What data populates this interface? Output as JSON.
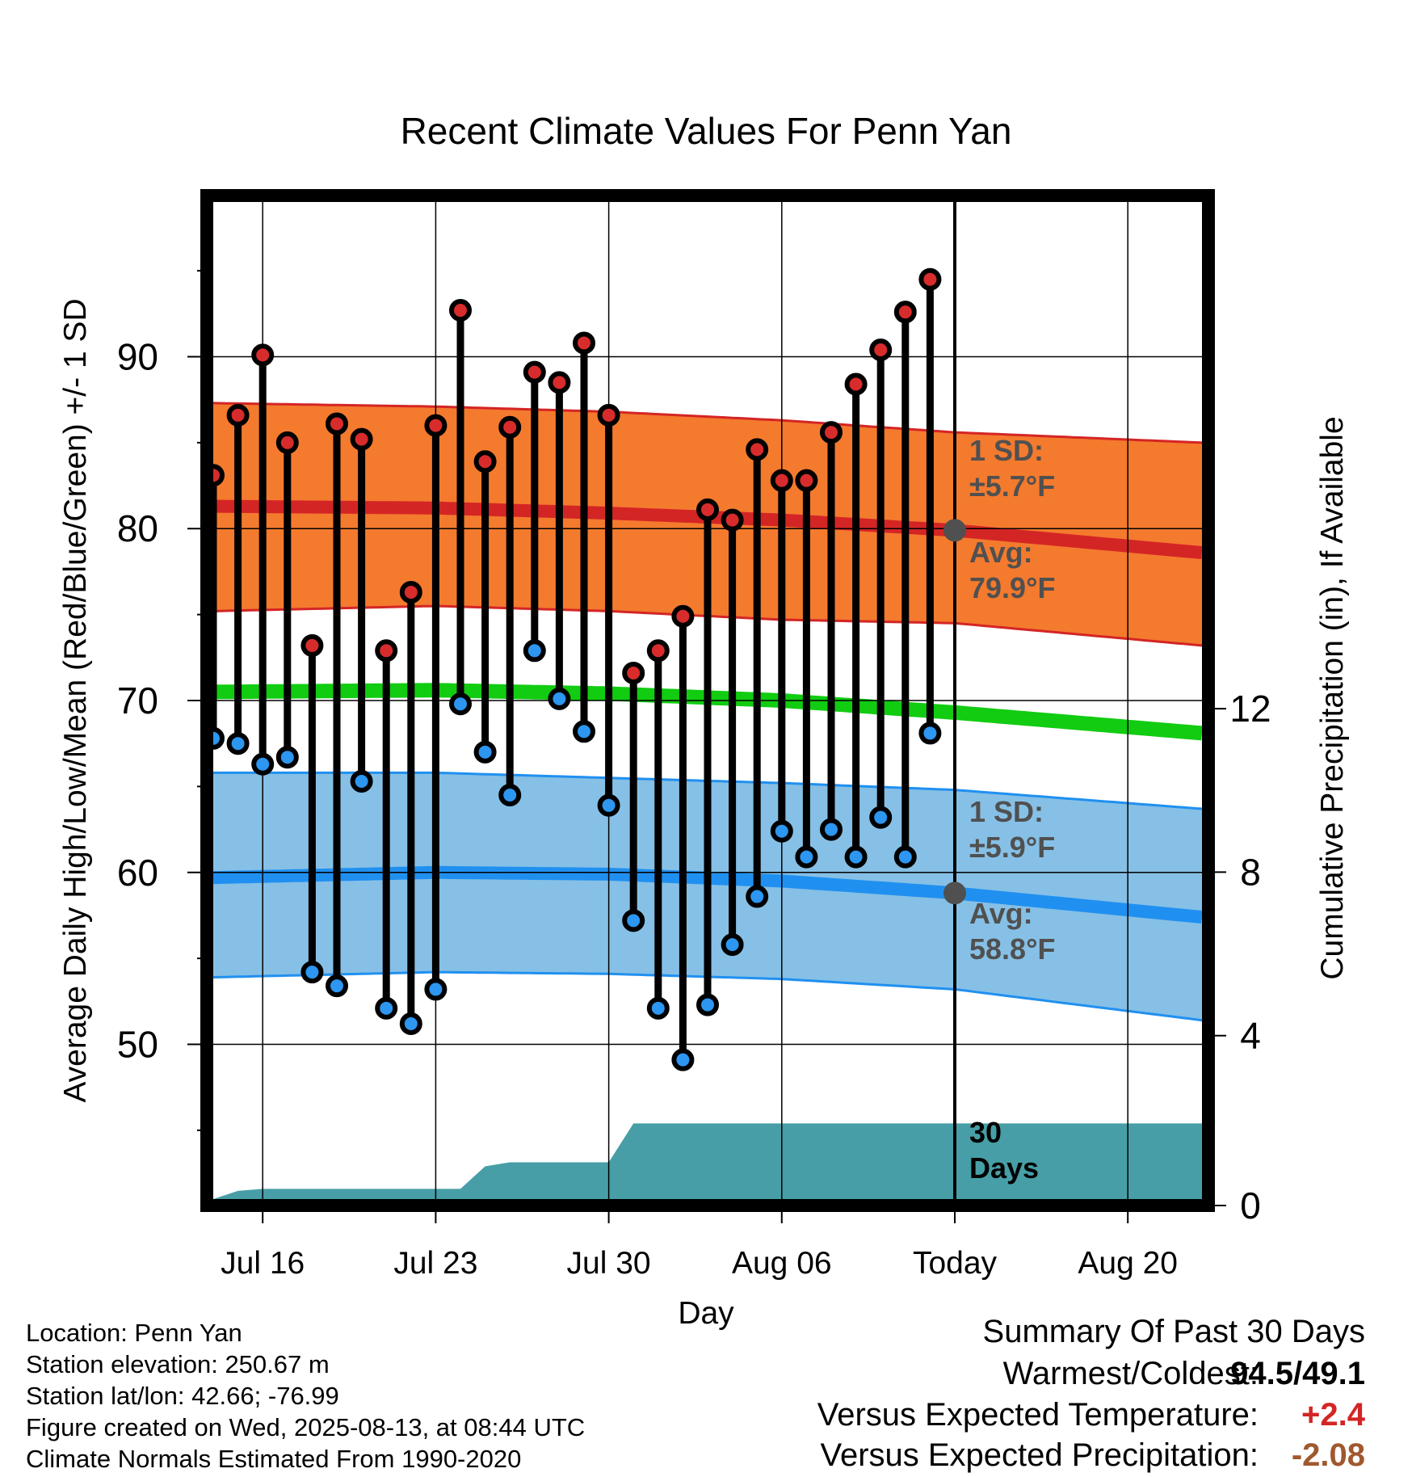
{
  "chart_data": {
    "type": "line",
    "title": "Recent Climate Values For Penn Yan",
    "xlabel": "Day",
    "ylabel": "Average Daily High/Low/Mean (Red/Blue/Green) +/- 1 SD",
    "y2label": "Cumulative Precipitation (in), If Available",
    "x_tick_labels": [
      "Jul 16",
      "Jul 23",
      "Jul 30",
      "Aug 06",
      "Today",
      "Aug 20"
    ],
    "x_tick_dates": [
      "2025-07-16",
      "2025-07-23",
      "2025-07-30",
      "2025-08-06",
      "2025-08-13",
      "2025-08-20"
    ],
    "x_range": [
      "2025-07-14",
      "2025-08-23"
    ],
    "ylim": [
      41,
      99
    ],
    "y_ticks": [
      50,
      60,
      70,
      80,
      90
    ],
    "y2lim": [
      0,
      24.4
    ],
    "y2_ticks": [
      0,
      4,
      8,
      12
    ],
    "grid": true,
    "today": "2025-08-13",
    "high_avg_band": {
      "dates": [
        "2025-07-14",
        "2025-07-23",
        "2025-07-30",
        "2025-08-06",
        "2025-08-13",
        "2025-08-23"
      ],
      "mean": [
        81.3,
        81.2,
        80.9,
        80.5,
        79.9,
        78.6
      ],
      "upper": [
        87.3,
        87.1,
        86.8,
        86.3,
        85.6,
        85.0
      ],
      "lower": [
        75.2,
        75.5,
        75.2,
        74.7,
        74.5,
        73.2
      ]
    },
    "low_avg_band": {
      "dates": [
        "2025-07-14",
        "2025-07-23",
        "2025-07-30",
        "2025-08-06",
        "2025-08-13",
        "2025-08-23"
      ],
      "mean": [
        59.7,
        60.0,
        59.9,
        59.5,
        58.8,
        57.4
      ],
      "upper": [
        65.8,
        65.8,
        65.5,
        65.2,
        64.8,
        63.7
      ],
      "lower": [
        53.9,
        54.2,
        54.1,
        53.8,
        53.2,
        51.4
      ]
    },
    "mean_avg": {
      "dates": [
        "2025-07-14",
        "2025-07-23",
        "2025-07-30",
        "2025-08-06",
        "2025-08-13",
        "2025-08-23"
      ],
      "values": [
        70.5,
        70.6,
        70.4,
        70.0,
        69.3,
        68.1
      ]
    },
    "daily_dates": [
      "2025-07-14",
      "2025-07-15",
      "2025-07-16",
      "2025-07-17",
      "2025-07-18",
      "2025-07-19",
      "2025-07-20",
      "2025-07-21",
      "2025-07-22",
      "2025-07-23",
      "2025-07-24",
      "2025-07-25",
      "2025-07-26",
      "2025-07-27",
      "2025-07-28",
      "2025-07-29",
      "2025-07-30",
      "2025-07-31",
      "2025-08-01",
      "2025-08-02",
      "2025-08-03",
      "2025-08-04",
      "2025-08-05",
      "2025-08-06",
      "2025-08-07",
      "2025-08-08",
      "2025-08-09",
      "2025-08-10",
      "2025-08-11",
      "2025-08-12"
    ],
    "daily_high": [
      83.1,
      86.6,
      90.1,
      85.0,
      73.2,
      86.1,
      85.2,
      72.9,
      76.3,
      86.0,
      92.7,
      83.9,
      85.9,
      89.1,
      88.5,
      90.8,
      86.6,
      71.6,
      72.9,
      74.9,
      81.1,
      80.5,
      84.6,
      82.8,
      82.8,
      85.6,
      88.4,
      90.4,
      92.6,
      94.5
    ],
    "daily_low": [
      67.8,
      67.5,
      66.3,
      66.7,
      54.2,
      53.4,
      65.3,
      52.1,
      51.2,
      53.2,
      69.8,
      67.0,
      64.5,
      72.9,
      70.1,
      68.2,
      63.9,
      57.2,
      52.1,
      49.1,
      52.3,
      55.8,
      58.6,
      62.4,
      60.9,
      62.5,
      60.9,
      63.2,
      60.9,
      68.1
    ],
    "precip_cumulative": {
      "dates": [
        "2025-07-14",
        "2025-07-15",
        "2025-07-16",
        "2025-07-24",
        "2025-07-25",
        "2025-07-26",
        "2025-07-30",
        "2025-07-31",
        "2025-08-23"
      ],
      "values": [
        0.0,
        0.2,
        0.25,
        0.25,
        0.8,
        0.9,
        0.9,
        1.85,
        1.85
      ]
    },
    "annotations": {
      "high_sd": "±5.7°F",
      "high_avg": "79.9°F",
      "low_sd": "±5.9°F",
      "low_avg": "58.8°F",
      "sd_prefix": "1 SD:",
      "avg_prefix": "Avg:",
      "days_number": "30",
      "days_word": "Days"
    },
    "colors": {
      "high_band": "#f47a2e",
      "high_line": "#d42525",
      "high_marker": "#d82c2c",
      "low_band": "#86c0e6",
      "low_line": "#2090f0",
      "low_marker": "#2c96f0",
      "mean_line": "#11cc11",
      "precip": "#479ea6",
      "annotation_text": "#505050"
    }
  },
  "info": {
    "location": "Location: Penn Yan",
    "elevation": "Station elevation: 250.67 m",
    "latlon": "Station lat/lon: 42.66; -76.99",
    "created": "Figure created on Wed, 2025-08-13, at 08:44 UTC",
    "normals": "Climate Normals Estimated From 1990-2020"
  },
  "summary": {
    "title": "Summary Of Past 30 Days",
    "warm_cold_label": "Warmest/Coldest:",
    "warm_cold_value": "94.5/49.1",
    "temp_label": "Versus Expected Temperature:",
    "temp_value": "+2.4",
    "temp_color": "#d42525",
    "precip_label": "Versus Expected Precipitation:",
    "precip_value": "-2.08",
    "precip_color": "#a0582e"
  }
}
